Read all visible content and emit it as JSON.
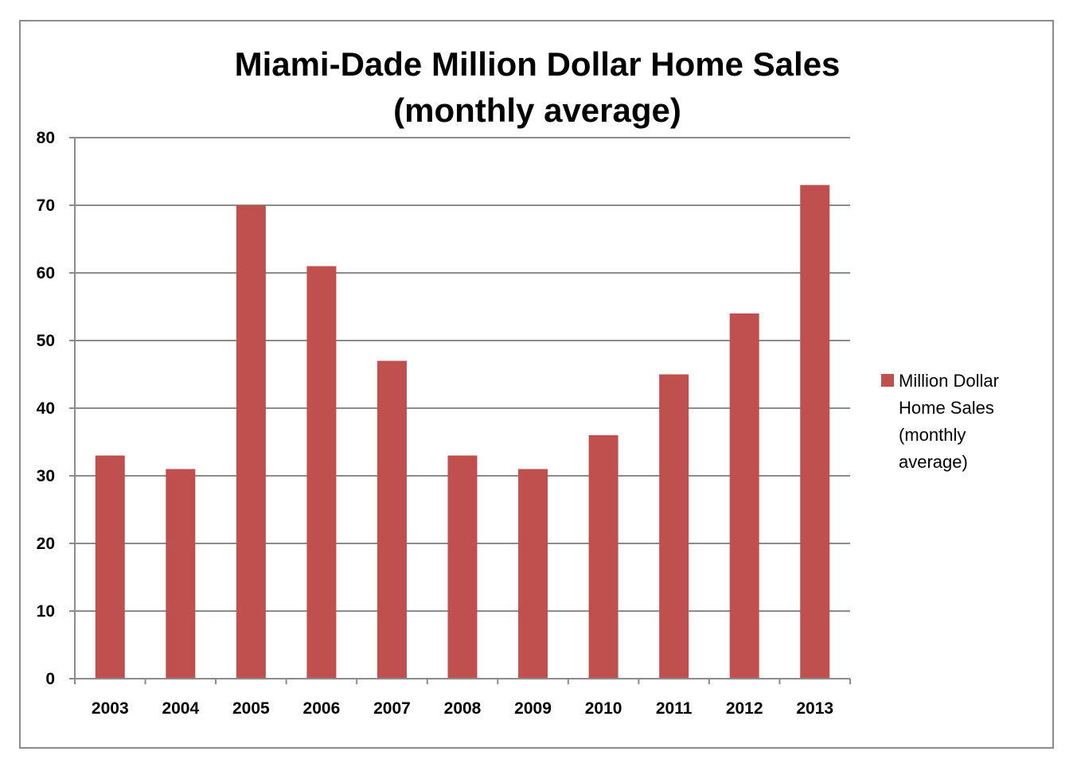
{
  "chart_data": {
    "type": "bar",
    "title_lines": [
      "Miami-Dade Million Dollar Home Sales",
      "(monthly average)"
    ],
    "categories": [
      "2003",
      "2004",
      "2005",
      "2006",
      "2007",
      "2008",
      "2009",
      "2010",
      "2011",
      "2012",
      "2013"
    ],
    "series": [
      {
        "name": "Million Dollar Home Sales (monthly average)",
        "values": [
          33,
          31,
          70,
          61,
          47,
          33,
          31,
          36,
          45,
          54,
          73
        ],
        "color": "#c0504d"
      }
    ],
    "xlabel": "",
    "ylabel": "",
    "ylim": [
      0,
      80
    ],
    "yticks": [
      0,
      10,
      20,
      30,
      40,
      50,
      60,
      70,
      80
    ],
    "grid": true,
    "legend_position": "right"
  }
}
